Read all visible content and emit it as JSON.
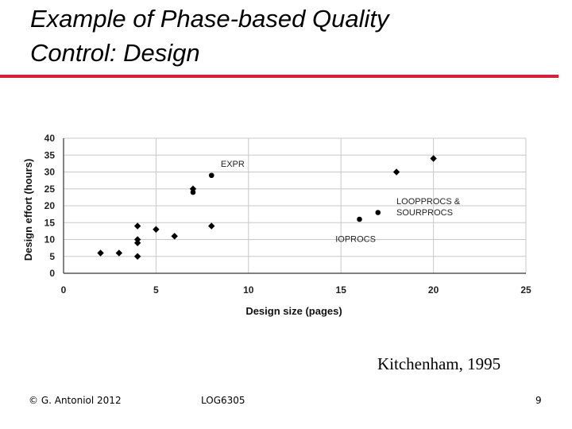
{
  "slide": {
    "title_line1": "Example of Phase-based Quality",
    "title_line2": "Control: Design",
    "citation": "Kitchenham, 1995",
    "footer_left": "© G. Antoniol 2012",
    "footer_center": "LOG6305",
    "page_number": "9",
    "accent_color": "#d6213a"
  },
  "chart_data": {
    "type": "scatter",
    "xlabel": "Design size (pages)",
    "ylabel": "Design effort (hours)",
    "xlim": [
      0,
      25
    ],
    "ylim": [
      0,
      40
    ],
    "xticks": [
      0,
      5,
      10,
      15,
      20,
      25
    ],
    "yticks": [
      0,
      5,
      10,
      15,
      20,
      25,
      30,
      35,
      40
    ],
    "grid": true,
    "series": [
      {
        "marker": "diamond",
        "points": [
          [
            2,
            6
          ],
          [
            3,
            6
          ],
          [
            4,
            5
          ],
          [
            4,
            9
          ],
          [
            4,
            10
          ],
          [
            4,
            14
          ],
          [
            5,
            13
          ],
          [
            6,
            11
          ],
          [
            7,
            25
          ],
          [
            8,
            14
          ],
          [
            18,
            30
          ],
          [
            20,
            34
          ]
        ]
      },
      {
        "marker": "circle",
        "points": [
          [
            7,
            24
          ],
          [
            8,
            29
          ],
          [
            16,
            16
          ],
          [
            17,
            18
          ]
        ]
      }
    ],
    "annotations": [
      {
        "text": "EXPR",
        "x": 8.5,
        "y": 31.5
      },
      {
        "text": "LOOPPROCS &",
        "x": 18,
        "y": 20.5
      },
      {
        "text": "SOURPROCS",
        "x": 18,
        "y": 17.2
      },
      {
        "text": "IOPROCS",
        "x": 14.7,
        "y": 9.3
      }
    ]
  }
}
